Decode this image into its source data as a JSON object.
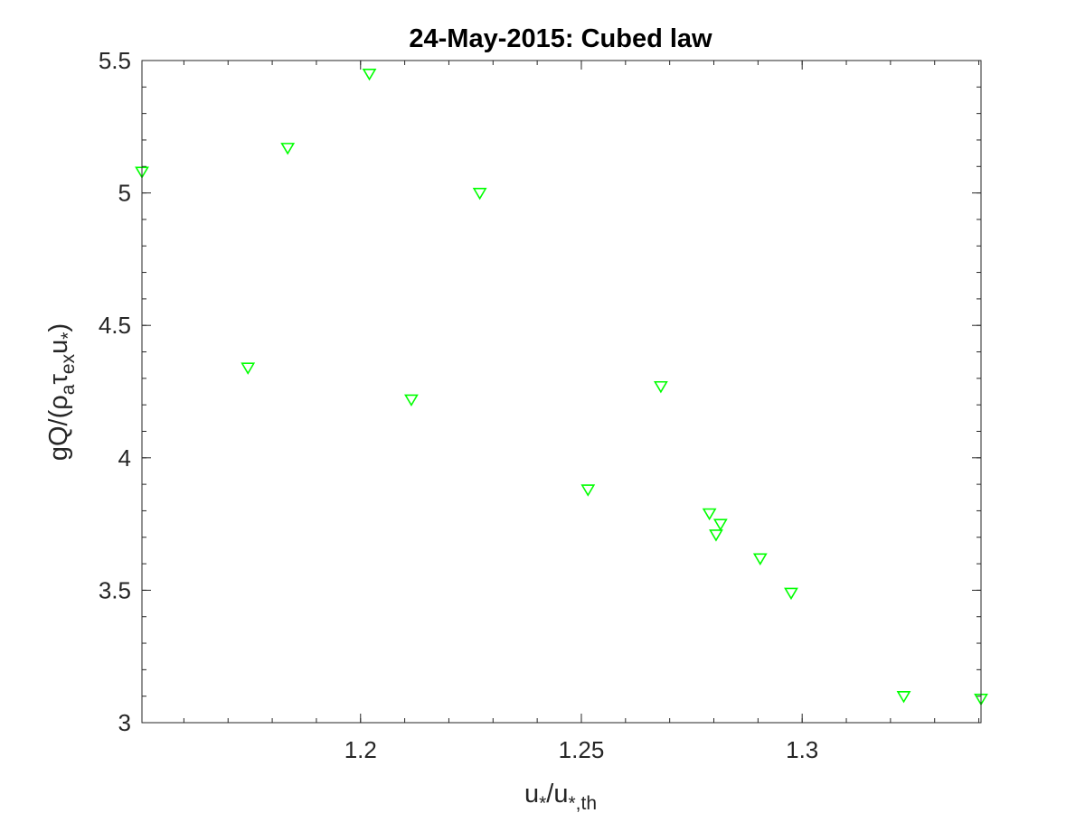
{
  "chart_data": {
    "type": "scatter",
    "title": "24-May-2015: Cubed law",
    "xlabel": {
      "base": "u",
      "sub1": "*",
      "mid": "/u",
      "sub2": "*,th"
    },
    "ylabel": {
      "p1": "gQ/(",
      "rho": "ρ",
      "sub_a": "a",
      "tau": "τ",
      "sub_ex": "ex",
      "p2": "u",
      "sub_star": "*",
      "p3": ")"
    },
    "xlim": [
      1.1505,
      1.3405
    ],
    "ylim": [
      3,
      5.5
    ],
    "x_ticks": [
      1.2,
      1.25,
      1.3
    ],
    "x_tick_labels": [
      "1.2",
      "1.25",
      "1.3"
    ],
    "y_ticks": [
      3,
      3.5,
      4,
      4.5,
      5,
      5.5
    ],
    "y_tick_labels": [
      "3",
      "3.5",
      "4",
      "4.5",
      "5",
      "5.5"
    ],
    "x_minor_step": 0.01,
    "y_minor_step": 0.1,
    "grid": false,
    "box": true,
    "marker": "triangle-down",
    "marker_color": "#00ff00",
    "points": [
      {
        "x": 1.1505,
        "y": 5.08
      },
      {
        "x": 1.1745,
        "y": 4.34
      },
      {
        "x": 1.1835,
        "y": 5.17
      },
      {
        "x": 1.202,
        "y": 5.45
      },
      {
        "x": 1.2115,
        "y": 4.22
      },
      {
        "x": 1.227,
        "y": 5.0
      },
      {
        "x": 1.2515,
        "y": 3.88
      },
      {
        "x": 1.268,
        "y": 4.27
      },
      {
        "x": 1.279,
        "y": 3.79
      },
      {
        "x": 1.2815,
        "y": 3.75
      },
      {
        "x": 1.2805,
        "y": 3.71
      },
      {
        "x": 1.2905,
        "y": 3.62
      },
      {
        "x": 1.2975,
        "y": 3.49
      },
      {
        "x": 1.323,
        "y": 3.1
      },
      {
        "x": 1.3405,
        "y": 3.09
      }
    ]
  }
}
